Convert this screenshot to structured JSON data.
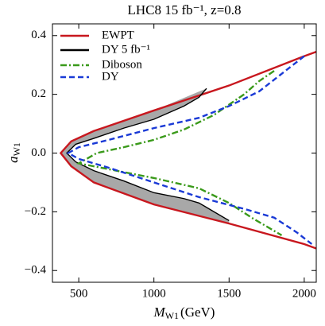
{
  "chart_data": {
    "type": "line",
    "title": "LHC8 15 fb⁻¹, z=0.8",
    "xlabel": {
      "symbol": "M",
      "subscript": "W1",
      "unit": "(GeV)"
    },
    "ylabel": {
      "symbol": "a",
      "subscript": "W1"
    },
    "xlim": [
      325,
      2080
    ],
    "ylim": [
      -0.44,
      0.44
    ],
    "xticks": [
      500,
      1000,
      1500,
      2000
    ],
    "yticks": [
      {
        "value": -0.4,
        "label": "−0.4"
      },
      {
        "value": -0.2,
        "label": "−0.2"
      },
      {
        "value": 0,
        "label": "0.0"
      },
      0.2,
      0.4
    ],
    "legend": "upper left",
    "shade_between": [
      "EWPT",
      "DY 5 fb⁻¹"
    ],
    "shade_color": "#a8a8a8",
    "series": [
      {
        "name": "EWPT",
        "color": "#c8171e",
        "dash": "solid",
        "x": [
          2080,
          2000,
          1500,
          1000,
          600,
          450,
          380,
          450,
          600,
          1000,
          1500,
          2000,
          2080
        ],
        "values": [
          0.345,
          0.33,
          0.23,
          0.145,
          0.075,
          0.04,
          0.0,
          -0.045,
          -0.1,
          -0.175,
          -0.24,
          -0.31,
          -0.325
        ]
      },
      {
        "name": "DY 5 fb⁻¹",
        "color": "#000000",
        "dash": "solid",
        "x": [
          1350,
          1300,
          1200,
          1000,
          800,
          600,
          480,
          420,
          480,
          600,
          800,
          1000,
          1200,
          1300,
          1400,
          1500
        ],
        "values": [
          0.22,
          0.19,
          0.16,
          0.115,
          0.085,
          0.05,
          0.03,
          0.0,
          -0.03,
          -0.06,
          -0.095,
          -0.135,
          -0.155,
          -0.17,
          -0.2,
          -0.23
        ]
      },
      {
        "name": "Diboson",
        "color": "#3a9a1a",
        "dash": "dashdot",
        "x": [
          1800,
          1700,
          1600,
          1400,
          1200,
          1000,
          800,
          620,
          500,
          700,
          1000,
          1300,
          1500,
          1650,
          1850
        ],
        "values": [
          0.28,
          0.245,
          0.2,
          0.13,
          0.08,
          0.045,
          0.02,
          0.0,
          -0.035,
          -0.055,
          -0.085,
          -0.12,
          -0.17,
          -0.22,
          -0.28
        ]
      },
      {
        "name": "DY",
        "color": "#1a3ad6",
        "dash": "dashed",
        "x": [
          2000,
          1850,
          1700,
          1500,
          1300,
          1000,
          700,
          500,
          430,
          500,
          700,
          1000,
          1300,
          1600,
          1800,
          1950,
          2050
        ],
        "values": [
          0.33,
          0.27,
          0.21,
          0.16,
          0.12,
          0.085,
          0.045,
          0.02,
          0.0,
          -0.02,
          -0.05,
          -0.1,
          -0.15,
          -0.19,
          -0.22,
          -0.27,
          -0.31
        ]
      }
    ]
  }
}
